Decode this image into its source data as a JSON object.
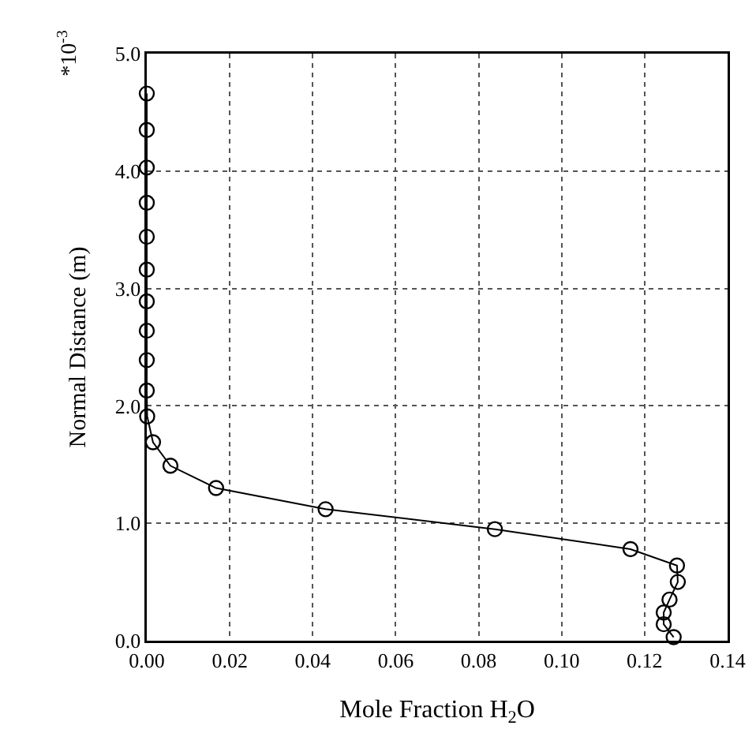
{
  "chart_data": {
    "type": "line",
    "xlabel": "Mole Fraction H$_{2}$O",
    "ylabel": "Normal Distance (m)",
    "annotations": [
      "*10$^{-3}$"
    ],
    "x": [
      0,
      0,
      0,
      0,
      0,
      0,
      0,
      0,
      0,
      0,
      0.0001,
      0.0015,
      0.0057,
      0.0167,
      0.0431,
      0.0839,
      0.1166,
      0.1278,
      0.128,
      0.126,
      0.1246,
      0.1246,
      0.127
    ],
    "series": [
      {
        "color": "#000000",
        "values": [
          4.66,
          4.35,
          4.03,
          3.73,
          3.44,
          3.16,
          2.89,
          2.64,
          2.39,
          2.13,
          1.91,
          1.69,
          1.49,
          1.3,
          1.12,
          0.95,
          0.78,
          0.64,
          0.5,
          0.35,
          0.24,
          0.14,
          0.03
        ]
      }
    ],
    "xlim": [
      0,
      0.14
    ],
    "xticks": [
      {
        "value": 0,
        "label": "0.00"
      },
      0.02,
      0.04,
      0.06,
      0.08,
      {
        "value": 0.1,
        "label": "0.10"
      },
      0.12,
      0.14
    ],
    "ylim": [
      0,
      5
    ],
    "yticks": [
      {
        "value": 0,
        "label": "0.0"
      },
      {
        "value": 1,
        "label": "1.0"
      },
      {
        "value": 2,
        "label": "2.0"
      },
      {
        "value": 3,
        "label": "3.0"
      },
      {
        "value": 4,
        "label": "4.0"
      },
      {
        "value": 5,
        "label": "5.0"
      }
    ],
    "grid": true,
    "legend": false,
    "marker": "circle",
    "line_style": "solid"
  }
}
